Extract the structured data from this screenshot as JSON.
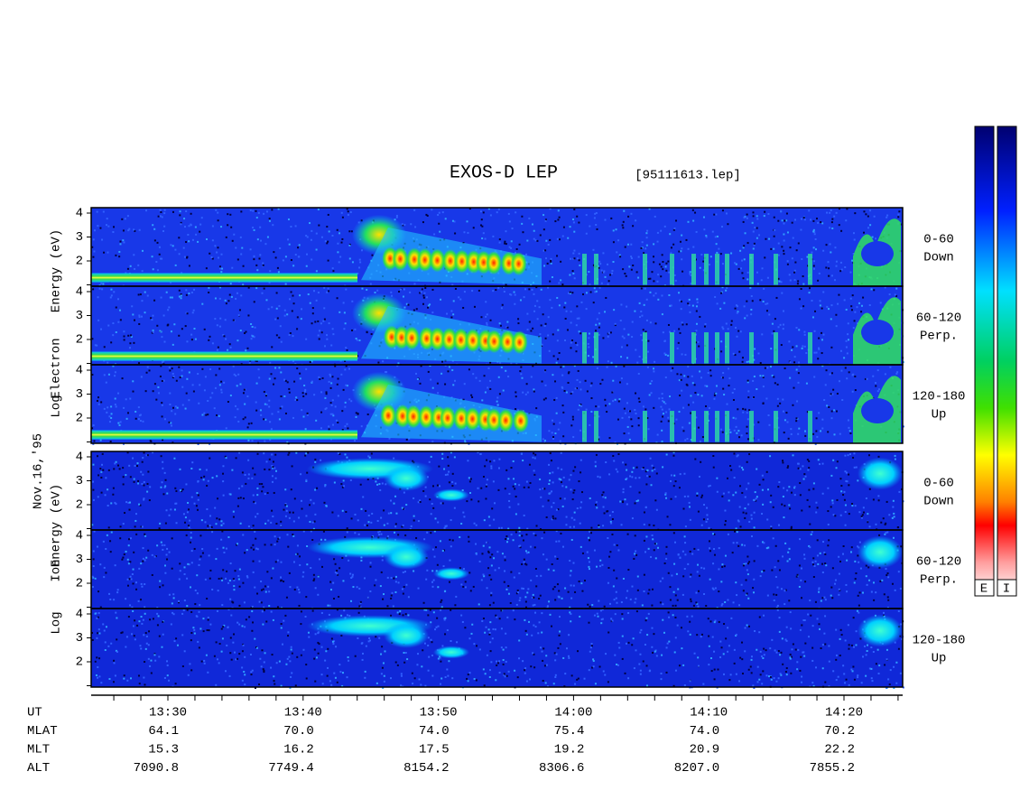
{
  "header": {
    "title": "EXOS-D LEP",
    "file": "[95111613.lep]"
  },
  "date": "Nov.16,'95",
  "yticks": [
    4,
    3,
    2
  ],
  "electron": {
    "axis_label": [
      "Log",
      "Electron",
      "Energy (eV)"
    ],
    "panel_labels": [
      [
        "0-60",
        "Down"
      ],
      [
        "60-120",
        "Perp."
      ],
      [
        "120-180",
        "Up"
      ]
    ]
  },
  "ion": {
    "axis_label": [
      "Log",
      "Ion",
      "Energy (eV)"
    ],
    "panel_labels": [
      [
        "0-60",
        "Down"
      ],
      [
        "60-120",
        "Perp."
      ],
      [
        "120-180",
        "Up"
      ]
    ]
  },
  "orbit": {
    "rows": [
      {
        "name": "UT",
        "values": [
          "13:30",
          "13:40",
          "13:50",
          "14:00",
          "14:10",
          "14:20"
        ]
      },
      {
        "name": "MLAT",
        "values": [
          "64.1",
          "70.0",
          "74.0",
          "75.4",
          "74.0",
          "70.2"
        ]
      },
      {
        "name": "MLT",
        "values": [
          "15.3",
          "16.2",
          "17.5",
          "19.2",
          "20.9",
          "22.2"
        ]
      },
      {
        "name": "ALT",
        "values": [
          "7090.8",
          "7749.4",
          "8154.2",
          "8306.6",
          "8207.0",
          "7855.2"
        ]
      }
    ]
  },
  "colorbar": [
    "E",
    "I"
  ]
}
